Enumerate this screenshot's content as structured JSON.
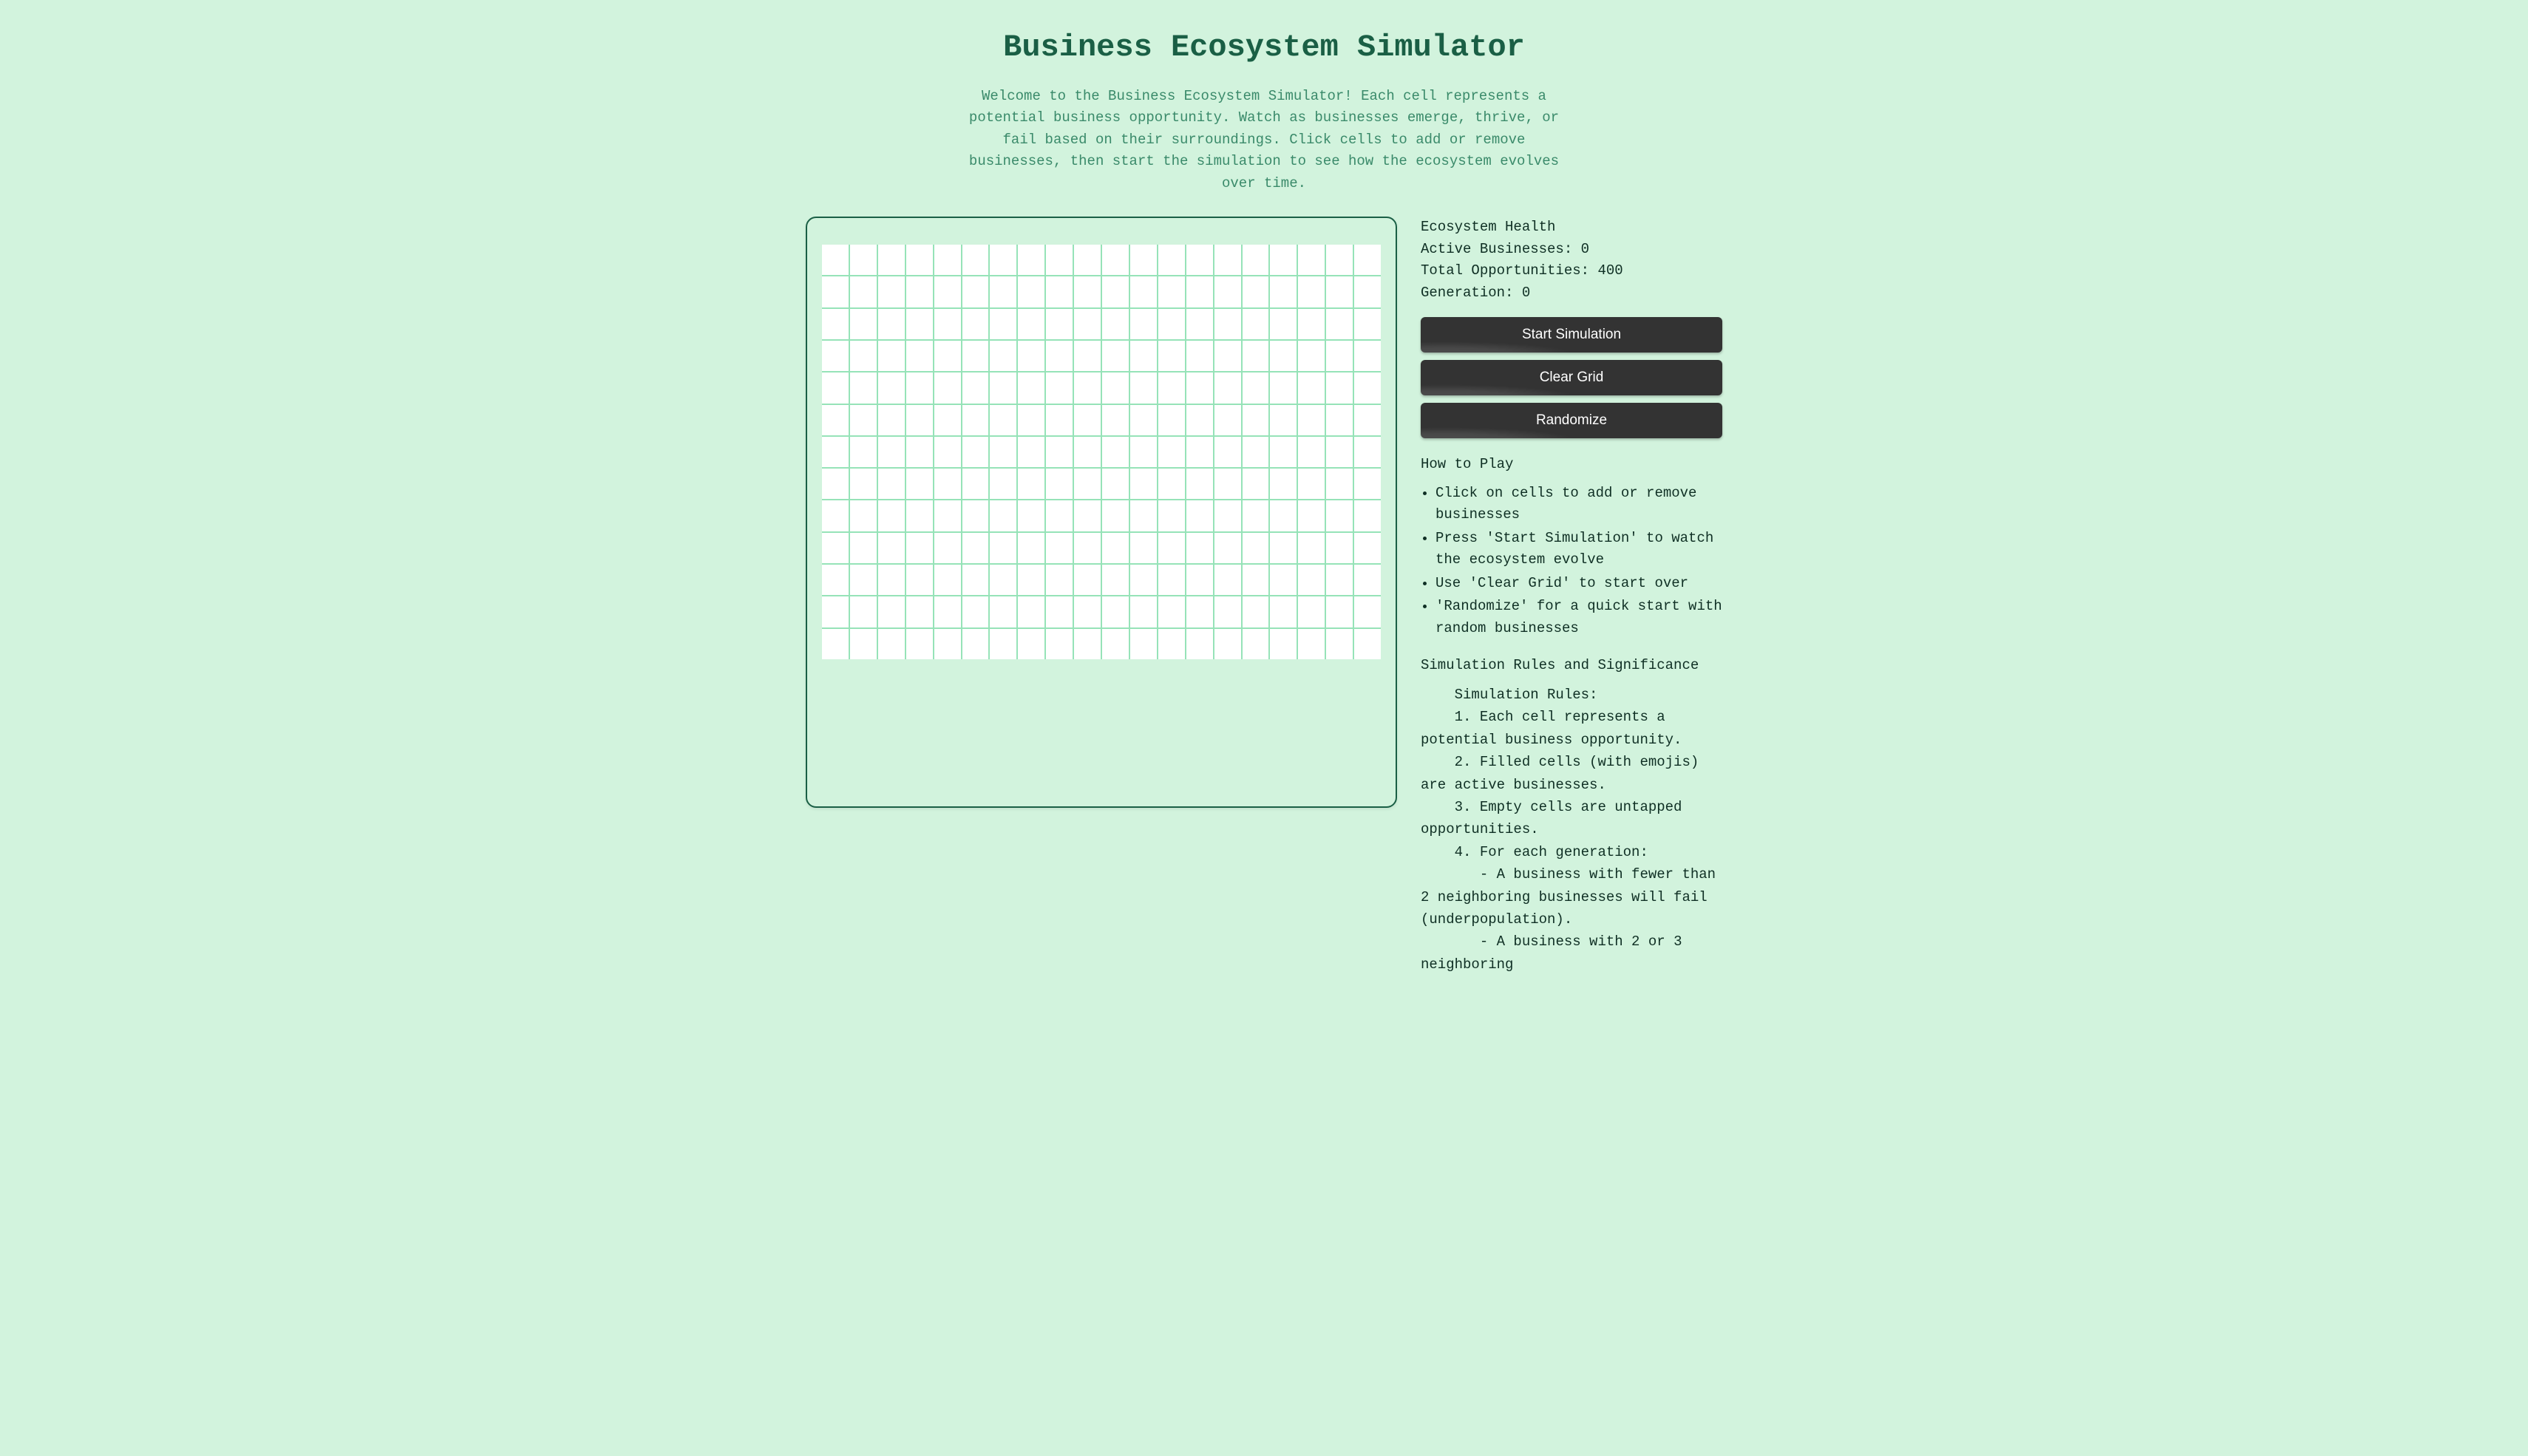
{
  "colors": {
    "background": "#d2f3dd",
    "heading": "#1a5f45",
    "intro_text": "#3a8a6a",
    "body_text": "#0f2f24",
    "grid_line": "#96e3b8",
    "cell_bg": "#ffffff",
    "grid_border": "#1a5f45",
    "button_bg": "#333333",
    "button_text": "#ffffff"
  },
  "typography": {
    "mono_family": "Courier New",
    "title_fontsize_pt": 32,
    "body_fontsize_pt": 14,
    "button_font_family": "Arial"
  },
  "title": "Business Ecosystem Simulator",
  "intro": "Welcome to the Business Ecosystem Simulator! Each cell represents a potential business opportunity. Watch as businesses emerge, thrive, or fail based on their surroundings. Click cells to add or remove businesses, then start the simulation to see how the ecosystem evolves over time.",
  "grid": {
    "cols": 20,
    "rows": 20,
    "visible_rows": 13,
    "cell_aspect": 1.15
  },
  "stats": {
    "header": "Ecosystem Health",
    "active_label": "Active Businesses: ",
    "active_value": "0",
    "total_label": "Total Opportunities: ",
    "total_value": "400",
    "generation_label": "Generation: ",
    "generation_value": "0"
  },
  "buttons": {
    "start": "Start Simulation",
    "clear": "Clear Grid",
    "randomize": "Randomize"
  },
  "howto": {
    "header": "How to Play",
    "items": [
      "Click on cells to add or remove businesses",
      "Press 'Start Simulation' to watch the ecosystem evolve",
      "Use 'Clear Grid' to start over",
      "'Randomize' for a quick start with random businesses"
    ]
  },
  "rules": {
    "header": "Simulation Rules and Significance",
    "body": "    Simulation Rules:\n    1. Each cell represents a potential business opportunity.\n    2. Filled cells (with emojis) are active businesses.\n    3. Empty cells are untapped opportunities.\n    4. For each generation:\n       - A business with fewer than 2 neighboring businesses will fail (underpopulation).\n       - A business with 2 or 3 neighboring"
  }
}
